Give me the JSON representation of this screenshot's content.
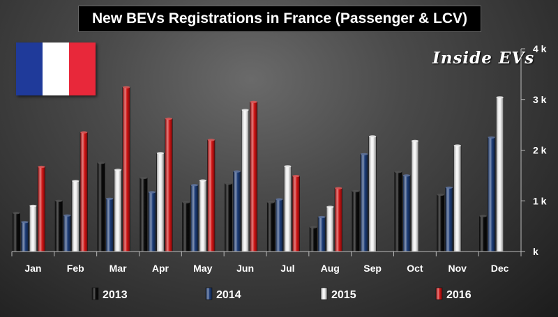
{
  "title": "New BEVs Registrations in France (Passenger & LCV)",
  "watermark": "Inside EVs",
  "flag": {
    "colors": [
      "#1f3a9a",
      "#ffffff",
      "#e8283a"
    ]
  },
  "colors": {
    "2013": "#0a0a0a",
    "2014": "#1d3d78",
    "2015": "#f2f2f2",
    "2016": "#d11414"
  },
  "chart_data": {
    "type": "bar",
    "categories": [
      "Jan",
      "Feb",
      "Mar",
      "Apr",
      "May",
      "Jun",
      "Jul",
      "Aug",
      "Sep",
      "Oct",
      "Nov",
      "Dec"
    ],
    "series": [
      {
        "name": "2013",
        "values": [
          760,
          1000,
          1750,
          1450,
          970,
          1340,
          970,
          480,
          1190,
          1570,
          1120,
          700
        ]
      },
      {
        "name": "2014",
        "values": [
          580,
          710,
          1040,
          1170,
          1310,
          1580,
          1030,
          680,
          1920,
          1500,
          1260,
          2250
        ]
      },
      {
        "name": "2015",
        "values": [
          900,
          1390,
          1610,
          1940,
          1400,
          2790,
          1680,
          880,
          2270,
          2180,
          2090,
          3040
        ]
      },
      {
        "name": "2016",
        "values": [
          1670,
          2350,
          3240,
          2620,
          2200,
          2950,
          1490,
          1250,
          null,
          null,
          null,
          null
        ]
      }
    ],
    "yticks": [
      "k",
      "1 k",
      "2 k",
      "3 k",
      "4 k"
    ],
    "ylim": [
      0,
      4000
    ],
    "legend_position": "bottom",
    "grid": false
  }
}
